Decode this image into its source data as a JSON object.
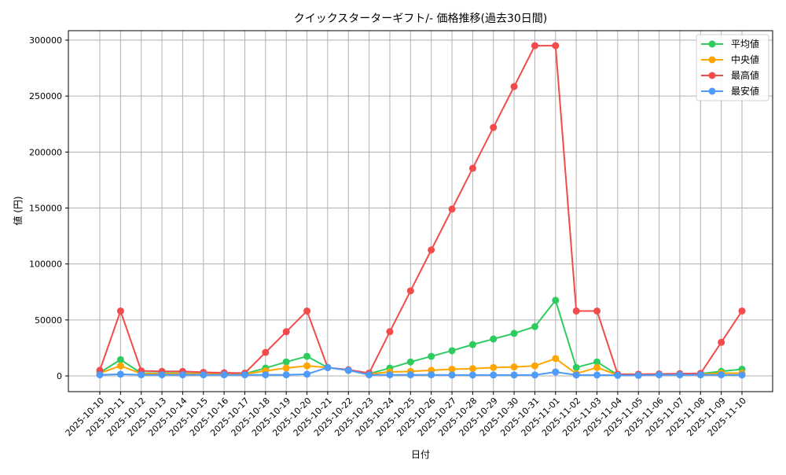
{
  "chart_data": {
    "type": "line",
    "title": "クイックスターターギフト/- 価格推移(過去30日間)",
    "xlabel": "日付",
    "ylabel": "値 (円)",
    "ylim": [
      -15000,
      310000
    ],
    "yticks": [
      0,
      50000,
      100000,
      150000,
      200000,
      250000,
      300000
    ],
    "ytick_labels": [
      "0",
      "50000",
      "100000",
      "150000",
      "200000",
      "250000",
      "300000"
    ],
    "grid": true,
    "legend_position": "upper right",
    "x": [
      "2025-10-10",
      "2025-10-11",
      "2025-10-12",
      "2025-10-13",
      "2025-10-14",
      "2025-10-15",
      "2025-10-16",
      "2025-10-17",
      "2025-10-18",
      "2025-10-19",
      "2025-10-20",
      "2025-10-21",
      "2025-10-22",
      "2025-10-23",
      "2025-10-24",
      "2025-10-25",
      "2025-10-26",
      "2025-10-27",
      "2025-10-28",
      "2025-10-29",
      "2025-10-30",
      "2025-10-31",
      "2025-11-01",
      "2025-11-02",
      "2025-11-03",
      "2025-11-04",
      "2025-11-05",
      "2025-11-06",
      "2025-11-07",
      "2025-11-08",
      "2025-11-09",
      "2025-11-10"
    ],
    "series": [
      {
        "name": "平均値",
        "color": "#2ecc5f",
        "values": [
          3000,
          14500,
          2500,
          2500,
          2500,
          2000,
          2000,
          2000,
          7000,
          12500,
          17500,
          7500,
          5000,
          2000,
          7000,
          12500,
          17500,
          22500,
          28000,
          33000,
          38000,
          44000,
          67500,
          7500,
          12500,
          1000,
          1000,
          1500,
          1500,
          2000,
          4000,
          6000
        ]
      },
      {
        "name": "中央値",
        "color": "#ffa500",
        "values": [
          2500,
          9000,
          2000,
          2000,
          2000,
          1800,
          1800,
          1800,
          4500,
          7000,
          9000,
          7500,
          5000,
          1800,
          3500,
          4000,
          5000,
          6000,
          6500,
          7500,
          8000,
          9000,
          15500,
          2000,
          7500,
          800,
          800,
          1200,
          1200,
          1500,
          2500,
          2500
        ]
      },
      {
        "name": "最高値",
        "color": "#f24b4b",
        "values": [
          5000,
          58000,
          4500,
          4000,
          4000,
          3200,
          2800,
          2500,
          21000,
          39500,
          58000,
          7500,
          5500,
          2500,
          39500,
          76000,
          112500,
          149000,
          185500,
          222000,
          258500,
          295000,
          295000,
          58000,
          58000,
          1500,
          1500,
          1800,
          2000,
          2200,
          30000,
          58000
        ]
      },
      {
        "name": "最安値",
        "color": "#4e9bfa",
        "values": [
          1000,
          1500,
          1000,
          1000,
          1000,
          1000,
          1000,
          1000,
          1000,
          1000,
          1500,
          7500,
          5000,
          1000,
          1000,
          1000,
          1000,
          800,
          800,
          800,
          800,
          800,
          3500,
          800,
          800,
          500,
          500,
          1000,
          1000,
          1000,
          1000,
          800
        ]
      }
    ]
  }
}
